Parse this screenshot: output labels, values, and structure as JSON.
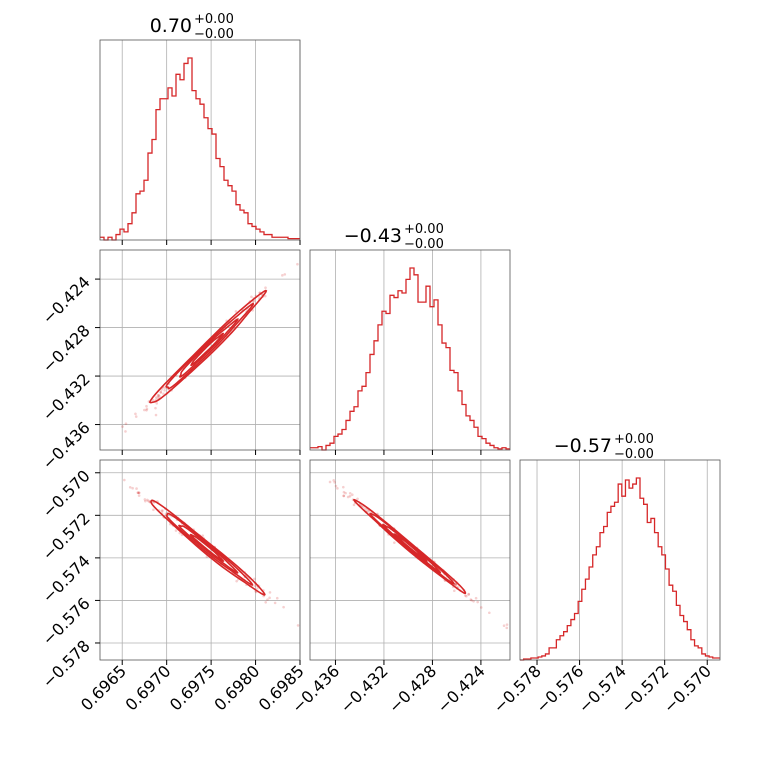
{
  "chart_data": {
    "type": "corner",
    "color": "#d62728",
    "parameters": [
      {
        "title": {
          "value": "0.70",
          "plus": "+0.00",
          "minus": "−0.00"
        },
        "range": [
          0.69625,
          0.6985
        ],
        "ticks": [
          {
            "v": 0.6965,
            "label": "0.6965"
          },
          {
            "v": 0.697,
            "label": "0.6970"
          },
          {
            "v": 0.6975,
            "label": "0.6975"
          },
          {
            "v": 0.698,
            "label": "0.6980"
          },
          {
            "v": 0.6985,
            "label": "0.6985"
          }
        ],
        "mean": 0.69745,
        "sd": 0.00032,
        "histogram": [
          0.01,
          0,
          0.01,
          0,
          0.02,
          0.04,
          0.03,
          0.06,
          0.1,
          0.17,
          0.18,
          0.22,
          0.32,
          0.37,
          0.48,
          0.52,
          0.52,
          0.56,
          0.53,
          0.61,
          0.59,
          0.65,
          0.67,
          0.55,
          0.52,
          0.5,
          0.45,
          0.41,
          0.39,
          0.3,
          0.27,
          0.22,
          0.2,
          0.18,
          0.13,
          0.11,
          0.1,
          0.06,
          0.05,
          0.04,
          0.03,
          0.02,
          0.02,
          0.01,
          0.01,
          0.01,
          0.01,
          0.005,
          0.005,
          0.005
        ]
      },
      {
        "title": {
          "value": "−0.43",
          "plus": "+0.00",
          "minus": "−0.00"
        },
        "range": [
          -0.4381,
          -0.4216
        ],
        "ticks": [
          {
            "v": -0.436,
            "label": "−0.436"
          },
          {
            "v": -0.432,
            "label": "−0.432"
          },
          {
            "v": -0.428,
            "label": "−0.428"
          },
          {
            "v": -0.424,
            "label": "−0.424"
          }
        ],
        "mean": -0.4298,
        "sd": 0.0023,
        "histogram": [
          0.01,
          0.01,
          0.015,
          0,
          0.02,
          0.03,
          0.06,
          0.07,
          0.09,
          0.13,
          0.17,
          0.19,
          0.26,
          0.28,
          0.34,
          0.42,
          0.48,
          0.55,
          0.61,
          0.6,
          0.68,
          0.67,
          0.7,
          0.69,
          0.75,
          0.8,
          0.77,
          0.65,
          0.65,
          0.72,
          0.63,
          0.66,
          0.55,
          0.47,
          0.45,
          0.35,
          0.34,
          0.26,
          0.2,
          0.15,
          0.13,
          0.1,
          0.06,
          0.05,
          0.03,
          0.02,
          0.01,
          0.005,
          0.01,
          0.005
        ]
      },
      {
        "title": {
          "value": "−0.57",
          "plus": "+0.00",
          "minus": "−0.00"
        },
        "range": [
          -0.5788,
          -0.5694
        ],
        "ticks": [
          {
            "v": -0.578,
            "label": "−0.578"
          },
          {
            "v": -0.576,
            "label": "−0.576"
          },
          {
            "v": -0.574,
            "label": "−0.574"
          },
          {
            "v": -0.572,
            "label": "−0.572"
          },
          {
            "v": -0.57,
            "label": "−0.570"
          }
        ],
        "mean": -0.5735,
        "sd": 0.0011,
        "histogram": [
          0,
          0.005,
          0.005,
          0.01,
          0.01,
          0.015,
          0.02,
          0.03,
          0.06,
          0.06,
          0.1,
          0.12,
          0.14,
          0.17,
          0.2,
          0.23,
          0.29,
          0.35,
          0.4,
          0.46,
          0.52,
          0.56,
          0.63,
          0.66,
          0.73,
          0.76,
          0.78,
          0.87,
          0.81,
          0.89,
          0.85,
          0.87,
          0.9,
          0.8,
          0.77,
          0.68,
          0.7,
          0.63,
          0.56,
          0.52,
          0.45,
          0.37,
          0.34,
          0.27,
          0.22,
          0.19,
          0.15,
          0.1,
          0.07,
          0.06,
          0.03,
          0.02,
          0.015,
          0.01,
          0.01
        ]
      }
    ],
    "correlations": [
      {
        "row": 1,
        "col": 0,
        "rho": 0.99
      },
      {
        "row": 2,
        "col": 0,
        "rho": -0.99
      },
      {
        "row": 2,
        "col": 1,
        "rho": -0.995
      }
    ],
    "grid": true
  }
}
